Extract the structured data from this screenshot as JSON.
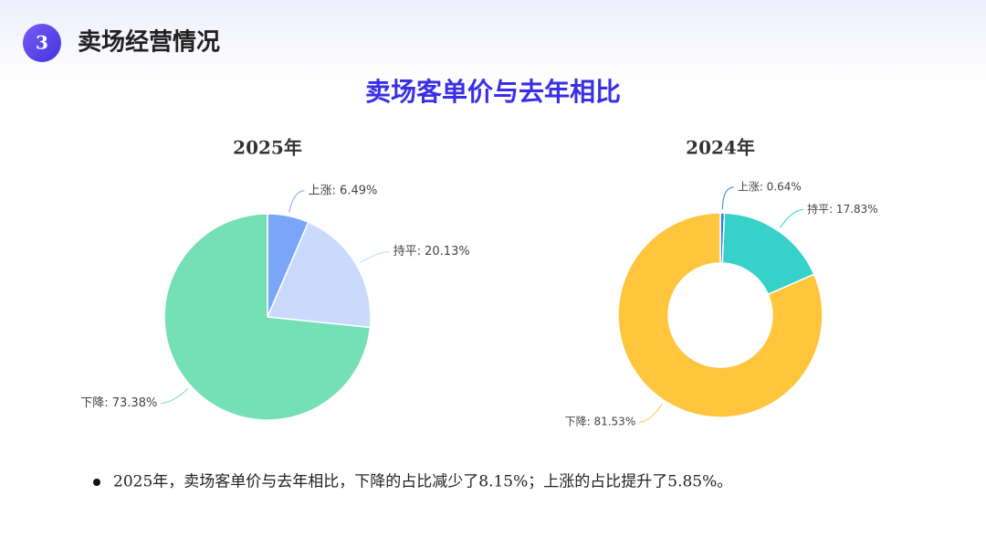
{
  "header": {
    "number": "3",
    "title": "卖场经营情况"
  },
  "title": "卖场客单价与去年相比",
  "chart_data": [
    {
      "type": "pie",
      "title": "2025年",
      "values": [
        6.49,
        20.13,
        73.38
      ],
      "value_labels": [
        "上涨: 6.49%",
        "持平: 20.13%",
        "下降: 73.38%"
      ],
      "colors": [
        "#7aa5f8",
        "#c9dafc",
        "#75dfb6"
      ]
    },
    {
      "type": "donut",
      "title": "2024年",
      "values": [
        0.64,
        17.83,
        81.53
      ],
      "value_labels": [
        "上涨: 0.64%",
        "持平: 17.83%",
        "下降: 81.53%"
      ],
      "colors": [
        "#2f7fe0",
        "#36d1c9",
        "#ffc53d"
      ]
    }
  ],
  "note": "2025年，卖场客单价与去年相比，下降的占比减少了8.15%；上涨的占比提升了5.85%。"
}
